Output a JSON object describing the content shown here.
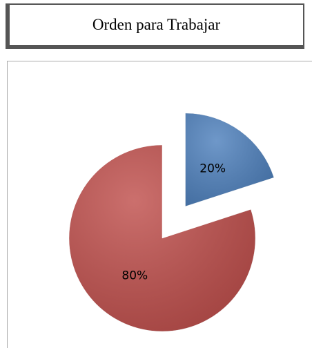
{
  "chart_data": {
    "type": "pie",
    "title": "Orden para Trabajar",
    "values": [
      20,
      80
    ],
    "value_labels": [
      "20%",
      "80%"
    ],
    "colors": [
      "#4f81bd",
      "#c0504d"
    ],
    "explode": [
      true,
      false
    ]
  }
}
